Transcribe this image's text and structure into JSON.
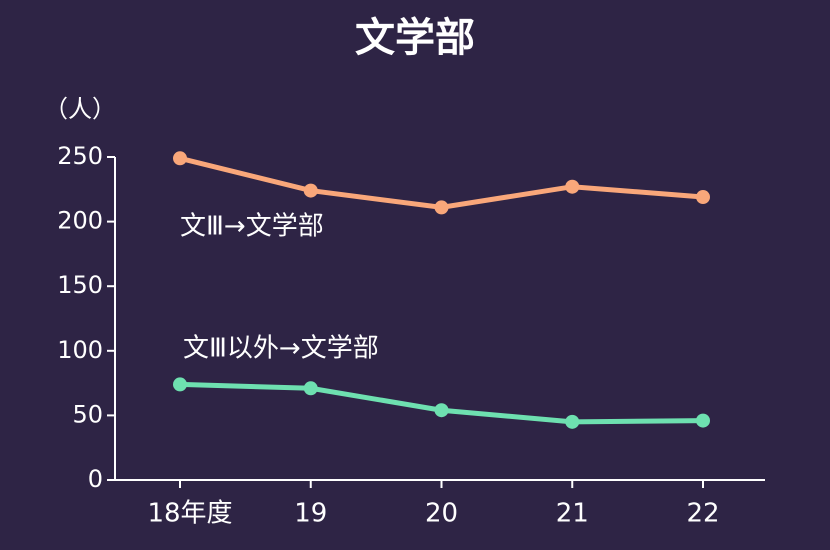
{
  "chart_data": {
    "type": "line",
    "title": "文学部",
    "y_label": "（人）",
    "categories": [
      "18年度",
      "19",
      "20",
      "21",
      "22"
    ],
    "series": [
      {
        "name": "文Ⅲ→文学部",
        "color": "#f9a77a",
        "values": [
          249,
          224,
          211,
          227,
          219
        ]
      },
      {
        "name": "文Ⅲ以外→文学部",
        "color": "#6ee0b0",
        "values": [
          74,
          71,
          54,
          45,
          46
        ]
      }
    ],
    "ylim": [
      0,
      250
    ],
    "yticks": [
      0,
      50,
      100,
      150,
      200,
      250
    ],
    "grid": false
  }
}
